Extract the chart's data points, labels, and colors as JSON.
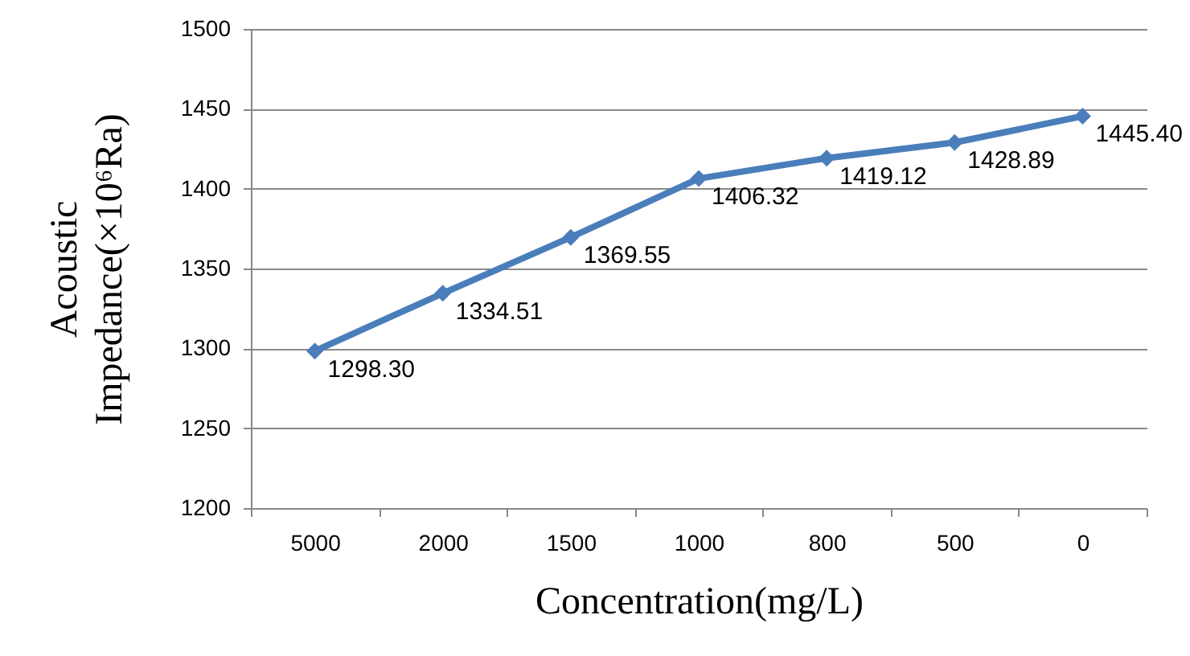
{
  "chart_data": {
    "type": "line",
    "xlabel": "Concentration(mg/L)",
    "ylabel": "Acoustic Impedance(×10⁶Ra)",
    "categories": [
      "5000",
      "2000",
      "1500",
      "1000",
      "800",
      "500",
      "0"
    ],
    "series": [
      {
        "color": "#4a7ebb",
        "values": [
          1298.3,
          1334.51,
          1369.55,
          1406.32,
          1419.12,
          1428.89,
          1445.4
        ],
        "value_labels": [
          "1298.30",
          "1334.51",
          "1369.55",
          "1406.32",
          "1419.12",
          "1428.89",
          "1445.40"
        ]
      }
    ],
    "ylim": [
      1200,
      1500
    ],
    "yticks": [
      1200,
      1250,
      1300,
      1350,
      1400,
      1450,
      1500
    ],
    "grid": "y",
    "marker": "diamond",
    "line_style": "solid"
  }
}
